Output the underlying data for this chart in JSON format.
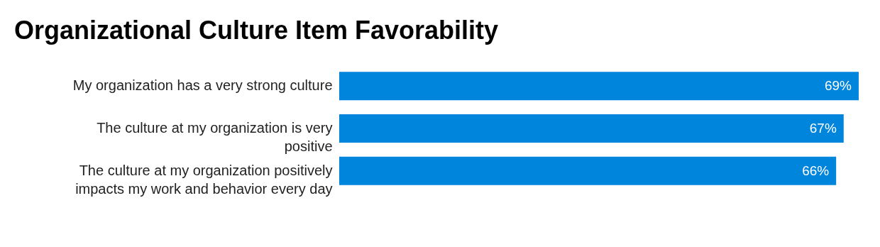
{
  "chart_data": {
    "type": "bar",
    "orientation": "horizontal",
    "title": "Organizational Culture Item Favorability",
    "categories": [
      "My organization has a very strong culture",
      "The culture at my organization is very positive",
      "The culture at my organization positively impacts my work and behavior every day"
    ],
    "values": [
      69,
      67,
      66
    ],
    "value_labels": [
      "69%",
      "67%",
      "66%"
    ],
    "color": "#0085dd"
  }
}
